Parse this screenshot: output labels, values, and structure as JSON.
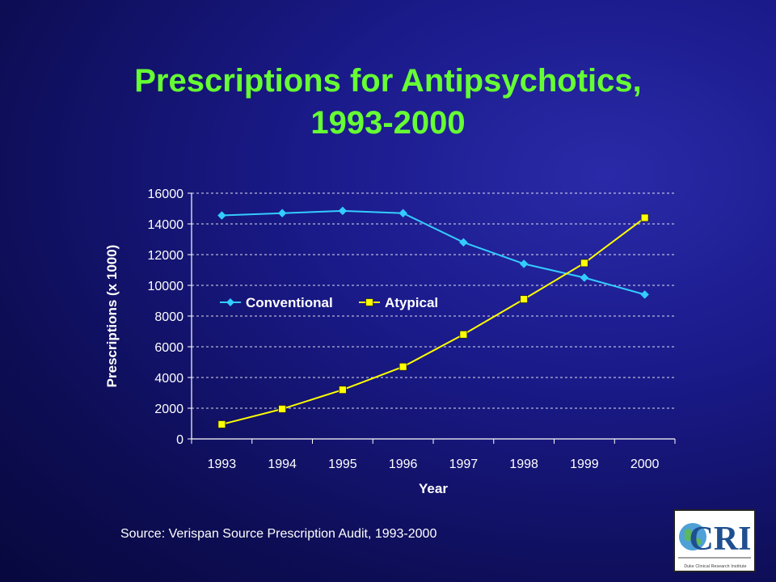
{
  "title_line1": "Prescriptions for Antipsychotics,",
  "title_line2": "1993-2000",
  "source": "Source: Verispan Source Prescription Audit, 1993-2000",
  "logo": {
    "lettering": "CRI",
    "subtext": "Duke Clinical Research Institute"
  },
  "colors": {
    "title": "#66ff33",
    "conventional": "#33ccff",
    "atypical": "#ffff00",
    "grid": "#ffffff",
    "text": "#ffffff"
  },
  "chart_data": {
    "type": "line",
    "title": "",
    "xlabel": "Year",
    "ylabel": "Prescriptions (x 1000)",
    "categories": [
      "1993",
      "1994",
      "1995",
      "1996",
      "1997",
      "1998",
      "1999",
      "2000"
    ],
    "ylim": [
      0,
      16000
    ],
    "yticks": [
      0,
      2000,
      4000,
      6000,
      8000,
      10000,
      12000,
      14000,
      16000
    ],
    "grid": true,
    "legend": "inside-left-middle",
    "series": [
      {
        "name": "Conventional",
        "marker": "diamond",
        "color": "#33ccff",
        "values": [
          14550,
          14700,
          14850,
          14700,
          12800,
          11400,
          10500,
          9400
        ]
      },
      {
        "name": "Atypical",
        "marker": "square",
        "color": "#ffff00",
        "values": [
          950,
          1950,
          3200,
          4700,
          6800,
          9100,
          11450,
          14400
        ]
      }
    ]
  }
}
